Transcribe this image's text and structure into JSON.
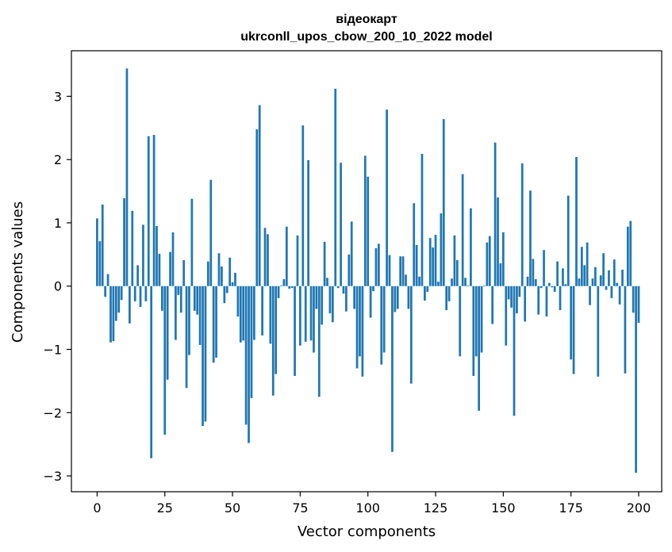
{
  "chart_data": {
    "type": "bar",
    "title_line1": "відеокарт",
    "title_line2": "ukrconll_upos_cbow_200_10_2022 model",
    "xlabel": "Vector components",
    "ylabel": "Components values",
    "xlim": [
      -9.5,
      208.5
    ],
    "ylim": [
      -3.25,
      3.72
    ],
    "x_ticks": [
      0,
      25,
      50,
      75,
      100,
      125,
      150,
      175,
      200
    ],
    "x_tick_labels": [
      "0",
      "25",
      "50",
      "75",
      "100",
      "125",
      "150",
      "175",
      "200"
    ],
    "y_ticks": [
      -3,
      -2,
      -1,
      0,
      1,
      2,
      3
    ],
    "y_tick_labels": [
      "−3",
      "−2",
      "−1",
      "0",
      "1",
      "2",
      "3"
    ],
    "bar_color": "#1f77b4",
    "grid": false,
    "values": [
      1.07,
      0.71,
      1.29,
      -0.17,
      0.19,
      -0.89,
      -0.87,
      -0.55,
      -0.42,
      -0.22,
      1.39,
      3.44,
      -0.59,
      1.19,
      -0.24,
      0.33,
      -0.33,
      0.97,
      -0.24,
      2.37,
      -2.72,
      2.39,
      0.95,
      0.51,
      -0.39,
      -2.35,
      -1.48,
      0.54,
      0.85,
      -0.85,
      -0.14,
      -0.42,
      0.41,
      -1.61,
      -1.09,
      1.38,
      -0.39,
      -0.45,
      -0.93,
      -2.21,
      -2.14,
      0.39,
      1.68,
      -1.21,
      -1.13,
      0.52,
      0.31,
      -0.27,
      -0.11,
      0.45,
      0.06,
      0.21,
      -0.48,
      -0.89,
      -0.86,
      -2.19,
      -2.48,
      -1.77,
      -0.85,
      2.48,
      2.86,
      -0.78,
      0.92,
      0.82,
      -0.91,
      -1.73,
      -1.39,
      -0.19,
      0.01,
      0.11,
      0.94,
      -0.04,
      -0.03,
      -1.42,
      0.8,
      -0.94,
      2.54,
      -0.88,
      1.99,
      -0.86,
      -1.05,
      -0.36,
      -1.75,
      -0.61,
      0.7,
      0.13,
      -0.43,
      -0.57,
      3.12,
      -0.03,
      1.95,
      -0.12,
      -0.4,
      0.5,
      1.02,
      -0.36,
      -1.3,
      -1.11,
      -1.43,
      2.06,
      1.73,
      -0.5,
      -0.08,
      0.6,
      0.67,
      -1.24,
      -1.05,
      2.79,
      0.49,
      -2.62,
      -0.41,
      -0.36,
      0.47,
      0.47,
      0.18,
      -0.36,
      -1.54,
      1.31,
      0.65,
      0.15,
      2.09,
      -0.23,
      -0.09,
      0.76,
      0.61,
      0.81,
      0.07,
      1.15,
      2.64,
      -0.38,
      -0.24,
      0.12,
      0.8,
      0.41,
      -1.11,
      1.77,
      0.13,
      0.01,
      1.23,
      -1.42,
      -1.11,
      -1.97,
      -1.05,
      0.01,
      0.69,
      0.79,
      -0.6,
      2.27,
      1.4,
      0.36,
      0.85,
      -0.94,
      -0.21,
      -0.34,
      -2.05,
      -0.43,
      -0.17,
      1.94,
      -0.56,
      0.15,
      1.51,
      0.43,
      0.11,
      -0.45,
      -0.03,
      0.57,
      -0.48,
      0.05,
      -0.02,
      -0.09,
      0.39,
      -0.38,
      0.28,
      0.03,
      1.43,
      -1.16,
      -1.39,
      2.04,
      0.12,
      0.62,
      0.33,
      0.69,
      -0.3,
      0.12,
      0.3,
      -1.43,
      0.17,
      0.52,
      -0.06,
      0.25,
      -0.19,
      0.42,
      0.05,
      -0.29,
      0.26,
      -1.38,
      0.94,
      1.03,
      -0.42,
      -2.95,
      -0.58
    ]
  }
}
